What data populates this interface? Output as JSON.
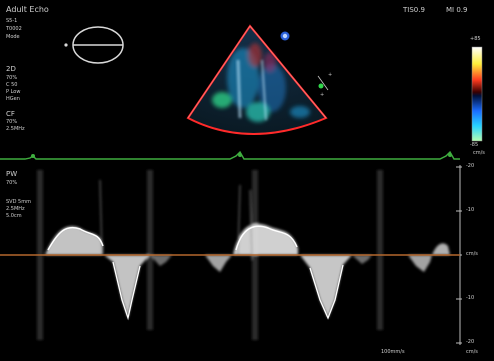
{
  "header": {
    "preset": "Adult Echo",
    "probe": "S5-1",
    "institution": "T0002",
    "mode": "Mode",
    "thermal_index": "TIS0.9",
    "mechanical_index": "MI 0.9"
  },
  "params_2d": {
    "heading": "2D",
    "lines": [
      "70%",
      "C 50",
      "P Low",
      "HGen"
    ]
  },
  "params_cf": {
    "heading": "CF",
    "lines": [
      "70%",
      "2.5MHz"
    ]
  },
  "params_pw": {
    "heading": "PW",
    "lines": [
      "70%"
    ]
  },
  "params_pw2": {
    "lines": [
      "SVD 5mm",
      "2.5MHz",
      "5.0cm"
    ]
  },
  "color_scale": {
    "top_label": "+85",
    "unit_label": "cm/s",
    "bottom_label": "-85"
  },
  "doppler_scale": {
    "ticks": [
      "-20",
      "-10",
      "cm/s",
      "-10",
      "-20"
    ],
    "unit": "cm/s"
  },
  "footer": {
    "sweep_speed": "100mm/s",
    "scale_unit": "cm/s"
  },
  "colors": {
    "ecg": "#3fae3f",
    "baseline": "#b5692e",
    "sector_border": "#ff2a2a",
    "cf_blue": "#1fa7e8",
    "cf_green": "#2fd68a"
  },
  "icons": [
    "probe-orientation-icon",
    "sample-volume-cursor-icon",
    "probe-marker-icon"
  ]
}
